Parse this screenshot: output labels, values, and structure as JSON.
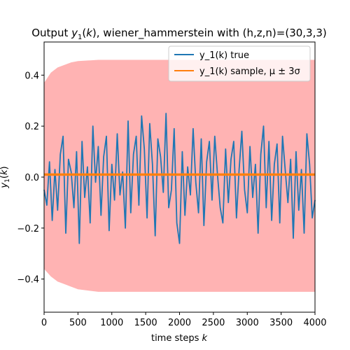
{
  "chart_data": {
    "type": "line",
    "title": "Output y₁(k), wiener_hammerstein with (h,z,n)=(30,3,3)",
    "xlabel": "time steps k",
    "ylabel": "y₁(k)",
    "xlim": [
      0,
      4000
    ],
    "ylim": [
      -0.53,
      0.53
    ],
    "xticks": [
      0,
      500,
      1000,
      1500,
      2000,
      2500,
      3000,
      3500,
      4000
    ],
    "xtick_labels": [
      "0",
      "500",
      "1000",
      "1500",
      "2000",
      "2500",
      "3000",
      "3500",
      "4000"
    ],
    "yticks": [
      -0.4,
      -0.2,
      0.0,
      0.2,
      0.4
    ],
    "ytick_labels": [
      "−0.4",
      "−0.2",
      "0.0",
      "0.2",
      "0.4"
    ],
    "grid": false,
    "legend_position": "top-right",
    "band": {
      "name": "μ ± 3σ",
      "color": "#ffb3b3",
      "x": [
        0,
        100,
        200,
        300,
        400,
        500,
        800,
        1200,
        2000,
        3000,
        4000
      ],
      "upper": [
        0.37,
        0.41,
        0.43,
        0.44,
        0.45,
        0.455,
        0.46,
        0.46,
        0.46,
        0.46,
        0.46
      ],
      "lower": [
        -0.36,
        -0.39,
        -0.41,
        -0.42,
        -0.43,
        -0.44,
        -0.45,
        -0.45,
        -0.45,
        -0.45,
        -0.45
      ]
    },
    "series": [
      {
        "name": "y_1(k) true",
        "legend_label": "y_1(k) true",
        "color": "#1f77b4",
        "x": [
          0,
          40,
          80,
          120,
          160,
          200,
          240,
          280,
          320,
          360,
          400,
          440,
          480,
          520,
          560,
          600,
          640,
          680,
          720,
          760,
          800,
          840,
          880,
          920,
          960,
          1000,
          1040,
          1080,
          1120,
          1160,
          1200,
          1240,
          1280,
          1320,
          1360,
          1400,
          1440,
          1480,
          1520,
          1560,
          1600,
          1640,
          1680,
          1720,
          1760,
          1800,
          1840,
          1880,
          1920,
          1960,
          2000,
          2040,
          2080,
          2120,
          2160,
          2200,
          2240,
          2280,
          2320,
          2360,
          2400,
          2440,
          2480,
          2520,
          2560,
          2600,
          2640,
          2680,
          2720,
          2760,
          2800,
          2840,
          2880,
          2920,
          2960,
          3000,
          3040,
          3080,
          3120,
          3160,
          3200,
          3240,
          3280,
          3320,
          3360,
          3400,
          3440,
          3480,
          3520,
          3560,
          3600,
          3640,
          3680,
          3720,
          3760,
          3800,
          3840,
          3880,
          3920,
          3960,
          4000
        ],
        "values": [
          -0.05,
          -0.11,
          0.06,
          -0.17,
          0.03,
          -0.13,
          0.09,
          0.16,
          -0.22,
          0.07,
          0.02,
          -0.12,
          0.1,
          -0.26,
          0.14,
          -0.08,
          0.04,
          -0.18,
          0.2,
          -0.02,
          0.12,
          -0.15,
          0.08,
          0.16,
          -0.21,
          0.05,
          -0.09,
          0.17,
          -0.07,
          0.02,
          -0.2,
          0.22,
          -0.14,
          0.09,
          0.16,
          -0.11,
          0.24,
          0.11,
          -0.16,
          0.21,
          0.05,
          -0.23,
          0.15,
          0.08,
          -0.06,
          0.25,
          -0.12,
          -0.05,
          0.19,
          -0.18,
          -0.26,
          0.1,
          -0.15,
          0.04,
          -0.07,
          0.19,
          -0.02,
          -0.14,
          0.15,
          -0.19,
          0.06,
          0.14,
          -0.09,
          0.16,
          0.01,
          -0.12,
          -0.18,
          0.11,
          -0.1,
          0.07,
          0.14,
          -0.16,
          0.03,
          0.18,
          -0.05,
          -0.14,
          0.12,
          -0.08,
          0.05,
          -0.22,
          0.09,
          0.2,
          -0.12,
          0.14,
          -0.17,
          0.05,
          0.13,
          -0.18,
          0.16,
          0.03,
          -0.1,
          0.07,
          -0.24,
          0.1,
          -0.13,
          0.03,
          -0.22,
          0.17,
          0.05,
          -0.16,
          -0.09
        ]
      },
      {
        "name": "y_1(k) sample",
        "legend_label": "y_1(k) sample, μ ± 3σ",
        "color": "#ff7f0e",
        "x": [
          0,
          4000
        ],
        "values": [
          0.01,
          0.01
        ]
      }
    ]
  }
}
